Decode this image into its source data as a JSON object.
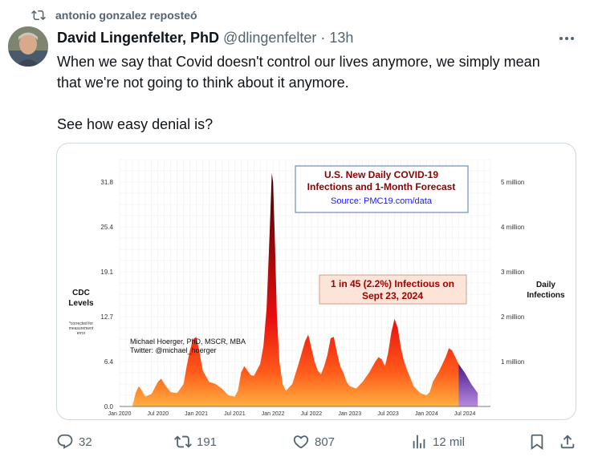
{
  "repost": {
    "text": "antonio gonzalez reposteó",
    "icon": "repost-icon"
  },
  "tweet": {
    "author_name": "David Lingenfelter, PhD",
    "handle": "@dlingenfelter",
    "separator": "·",
    "time": "13h",
    "text_line1": "When we say that Covid doesn't control our lives anymore, we simply mean",
    "text_line2": "that we're not going to think about it anymore.",
    "text_line3": "See how easy denial is?"
  },
  "chart_data": {
    "type": "area",
    "title_line1": "U.S. New Daily COVID-19",
    "title_line2": "Infections and 1-Month Forecast",
    "source": "Source: PMC19.com/data",
    "annotation_line1": "1 in 45 (2.2%) Infectious on",
    "annotation_line2": "Sept 23, 2024",
    "credit_line1": "Michael Hoerger, PhD, MSCR, MBA",
    "credit_line2": "Twitter: @michael_hoerger",
    "left_axis_title_line1": "CDC",
    "left_axis_title_line2": "Levels",
    "left_axis_note_line1": "*corrected for",
    "left_axis_note_line2": "measurement",
    "left_axis_note_line3": "error",
    "right_axis_title_line1": "Daily",
    "right_axis_title_line2": "Infections",
    "left_ticks": [
      "0.0",
      "6.4",
      "12.7",
      "19.1",
      "25.4",
      "31.8"
    ],
    "right_ticks": [
      "1 million",
      "2 million",
      "3 million",
      "4 million",
      "5 million"
    ],
    "x_ticks": [
      "Jan 2020",
      "Jul 2020",
      "Jan 2021",
      "Jul 2021",
      "Jan 2022",
      "Jul 2022",
      "Jan 2023",
      "Jul 2023",
      "Jan 2024",
      "Jul 2024"
    ],
    "y_range_millions": [
      0,
      5.5
    ],
    "x_range_months": [
      0,
      58
    ],
    "series": [
      {
        "points_months_vs_millions": [
          [
            2.0,
            0.0
          ],
          [
            2.5,
            0.3
          ],
          [
            3.0,
            0.45
          ],
          [
            3.5,
            0.35
          ],
          [
            4.0,
            0.22
          ],
          [
            5.0,
            0.28
          ],
          [
            6.0,
            0.55
          ],
          [
            6.5,
            0.62
          ],
          [
            7.0,
            0.5
          ],
          [
            8.0,
            0.32
          ],
          [
            9.0,
            0.3
          ],
          [
            10.0,
            0.5
          ],
          [
            10.5,
            0.9
          ],
          [
            11.0,
            1.25
          ],
          [
            11.5,
            1.5
          ],
          [
            12.0,
            1.55
          ],
          [
            12.5,
            1.2
          ],
          [
            13.0,
            0.8
          ],
          [
            14.0,
            0.55
          ],
          [
            15.0,
            0.5
          ],
          [
            16.0,
            0.4
          ],
          [
            17.0,
            0.25
          ],
          [
            18.0,
            0.22
          ],
          [
            18.5,
            0.35
          ],
          [
            19.0,
            0.75
          ],
          [
            19.5,
            0.9
          ],
          [
            20.0,
            0.8
          ],
          [
            20.5,
            0.7
          ],
          [
            21.0,
            0.68
          ],
          [
            22.0,
            0.95
          ],
          [
            22.5,
            1.35
          ],
          [
            23.0,
            2.2
          ],
          [
            23.5,
            4.0
          ],
          [
            23.8,
            5.2
          ],
          [
            24.0,
            5.0
          ],
          [
            24.3,
            3.6
          ],
          [
            24.6,
            2.0
          ],
          [
            25.0,
            1.0
          ],
          [
            25.5,
            0.5
          ],
          [
            26.0,
            0.35
          ],
          [
            27.0,
            0.5
          ],
          [
            28.0,
            0.95
          ],
          [
            29.0,
            1.45
          ],
          [
            29.5,
            1.6
          ],
          [
            30.0,
            1.3
          ],
          [
            30.5,
            1.0
          ],
          [
            31.0,
            0.8
          ],
          [
            31.5,
            0.72
          ],
          [
            32.0,
            0.9
          ],
          [
            32.5,
            1.15
          ],
          [
            33.0,
            1.52
          ],
          [
            33.5,
            1.55
          ],
          [
            34.0,
            1.2
          ],
          [
            34.5,
            0.9
          ],
          [
            35.0,
            0.75
          ],
          [
            35.5,
            0.55
          ],
          [
            36.0,
            0.45
          ],
          [
            37.0,
            0.4
          ],
          [
            38.0,
            0.55
          ],
          [
            39.0,
            0.75
          ],
          [
            40.0,
            1.0
          ],
          [
            40.5,
            1.1
          ],
          [
            41.0,
            1.05
          ],
          [
            41.5,
            0.9
          ],
          [
            42.0,
            1.2
          ],
          [
            42.5,
            1.65
          ],
          [
            43.0,
            1.95
          ],
          [
            43.5,
            1.75
          ],
          [
            44.0,
            1.3
          ],
          [
            44.5,
            1.0
          ],
          [
            45.0,
            0.8
          ],
          [
            46.0,
            0.45
          ],
          [
            47.0,
            0.3
          ],
          [
            48.0,
            0.25
          ],
          [
            48.5,
            0.32
          ],
          [
            49.0,
            0.55
          ],
          [
            50.0,
            0.8
          ],
          [
            51.0,
            1.1
          ],
          [
            51.5,
            1.3
          ],
          [
            52.0,
            1.25
          ],
          [
            52.5,
            1.1
          ],
          [
            53.0,
            0.95
          ]
        ]
      },
      {
        "name": "forecast",
        "points_months_vs_millions": [
          [
            53.0,
            0.95
          ],
          [
            54.0,
            0.75
          ],
          [
            55.0,
            0.5
          ],
          [
            56.0,
            0.3
          ]
        ]
      }
    ],
    "colors": {
      "peak": "#3a0505",
      "mid": "#e80e0e",
      "low": "#ff9a30",
      "forecast": "#7b3fb3",
      "title": "#8b0000",
      "source": "#1a1aff",
      "annotation": "#a30000",
      "annotation_bg": "#fde4d8",
      "title_border": "#6c8ebf"
    }
  },
  "actions": {
    "reply_count": "32",
    "repost_count": "191",
    "like_count": "807",
    "views_count": "12 mil"
  }
}
